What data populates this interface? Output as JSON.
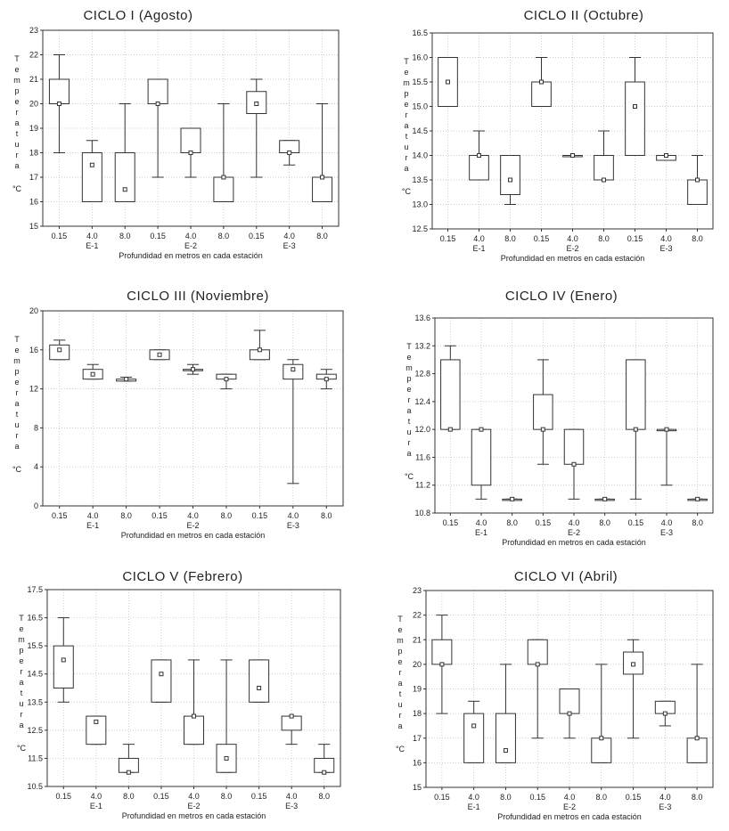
{
  "chart_data": [
    {
      "type": "boxplot",
      "title": "CICLO I (Agosto)",
      "ylabel_letters": [
        "T",
        "e",
        "m",
        "p",
        "e",
        "r",
        "a",
        "t",
        "u",
        "r",
        "a"
      ],
      "ylabel_unit": "°C",
      "xlabel": "Profundidad en metros en cada estación",
      "categories": [
        "0.15",
        "4.0",
        "8.0",
        "0.15",
        "4.0",
        "8.0",
        "0.15",
        "4.0",
        "8.0"
      ],
      "groups": [
        "E-1",
        "E-2",
        "E-3"
      ],
      "ylim": [
        15,
        23
      ],
      "yticks": [
        15,
        16,
        17,
        18,
        19,
        20,
        21,
        22,
        23
      ],
      "ytick_labels": [
        "15",
        "16",
        "17",
        "18",
        "19",
        "20",
        "21",
        "22",
        "23"
      ],
      "boxes": [
        {
          "min": 18,
          "q1": 20,
          "median": 20,
          "q3": 21,
          "max": 22
        },
        {
          "min": 16,
          "q1": 16,
          "median": 17.5,
          "q3": 18,
          "max": 18.5
        },
        {
          "min": 16,
          "q1": 16,
          "median": 16.5,
          "q3": 18,
          "max": 20
        },
        {
          "min": 17,
          "q1": 20,
          "median": 20,
          "q3": 21,
          "max": 21
        },
        {
          "min": 17,
          "q1": 18,
          "median": 18,
          "q3": 19,
          "max": 19
        },
        {
          "min": 16,
          "q1": 16,
          "median": 17,
          "q3": 17,
          "max": 20
        },
        {
          "min": 17,
          "q1": 19.6,
          "median": 20,
          "q3": 20.5,
          "max": 21
        },
        {
          "min": 17.5,
          "q1": 18,
          "median": 18,
          "q3": 18.5,
          "max": 18.5
        },
        {
          "min": 16,
          "q1": 16,
          "median": 17,
          "q3": 17,
          "max": 20
        }
      ]
    },
    {
      "type": "boxplot",
      "title": "CICLO II (Octubre)",
      "ylabel_letters": [
        "T",
        "e",
        "m",
        "p",
        "e",
        "r",
        "a",
        "t",
        "u",
        "r",
        "a"
      ],
      "ylabel_unit": "°C",
      "xlabel": "Profundidad en metros en cada estación",
      "categories": [
        "0.15",
        "4.0",
        "8.0",
        "0.15",
        "4.0",
        "8.0",
        "0.15",
        "4.0",
        "8.0"
      ],
      "groups": [
        "E-1",
        "E-2",
        "E-3"
      ],
      "ylim": [
        12.5,
        16.5
      ],
      "yticks": [
        12.5,
        13,
        13.5,
        14,
        14.5,
        15,
        15.5,
        16,
        16.5
      ],
      "ytick_labels": [
        "12.5",
        "13.0",
        "13.5",
        "14.0",
        "14.5",
        "15.0",
        "15.5",
        "16.0",
        "16.5"
      ],
      "boxes": [
        {
          "min": 15,
          "q1": 15,
          "median": 15.5,
          "q3": 16,
          "max": 16
        },
        {
          "min": 13.5,
          "q1": 13.5,
          "median": 14,
          "q3": 14,
          "max": 14.5
        },
        {
          "min": 13,
          "q1": 13.2,
          "median": 13.5,
          "q3": 14,
          "max": 14
        },
        {
          "min": 15,
          "q1": 15,
          "median": 15.5,
          "q3": 15.5,
          "max": 16
        },
        {
          "min": 14,
          "q1": 14,
          "median": 14,
          "q3": 14,
          "max": 14
        },
        {
          "min": 13.5,
          "q1": 13.5,
          "median": 13.5,
          "q3": 14,
          "max": 14.5
        },
        {
          "min": 14,
          "q1": 14,
          "median": 15,
          "q3": 15.5,
          "max": 16
        },
        {
          "min": 13.9,
          "q1": 13.9,
          "median": 14,
          "q3": 14,
          "max": 14
        },
        {
          "min": 13,
          "q1": 13,
          "median": 13.5,
          "q3": 13.5,
          "max": 14
        }
      ]
    },
    {
      "type": "boxplot",
      "title": "CICLO III (Noviembre)",
      "ylabel_letters": [
        "T",
        "e",
        "m",
        "p",
        "e",
        "r",
        "a",
        "t",
        "u",
        "r",
        "a"
      ],
      "ylabel_unit": "°C",
      "xlabel": "Profundidad en metros en cada estación",
      "categories": [
        "0.15",
        "4.0",
        "8.0",
        "0.15",
        "4.0",
        "8.0",
        "0.15",
        "4.0",
        "8.0"
      ],
      "groups": [
        "E-1",
        "E-2",
        "E-3"
      ],
      "ylim": [
        0,
        20
      ],
      "yticks": [
        0,
        4,
        8,
        12,
        16,
        20
      ],
      "ytick_labels": [
        "0",
        "4",
        "8",
        "12",
        "16",
        "20"
      ],
      "boxes": [
        {
          "min": 15,
          "q1": 15,
          "median": 16,
          "q3": 16.5,
          "max": 17
        },
        {
          "min": 13,
          "q1": 13,
          "median": 13.5,
          "q3": 14,
          "max": 14.5
        },
        {
          "min": 12.8,
          "q1": 12.8,
          "median": 13,
          "q3": 13,
          "max": 13.2
        },
        {
          "min": 15,
          "q1": 15,
          "median": 15.5,
          "q3": 16,
          "max": 16
        },
        {
          "min": 13.5,
          "q1": 14,
          "median": 14,
          "q3": 14,
          "max": 14.5
        },
        {
          "min": 12,
          "q1": 13,
          "median": 13,
          "q3": 13.5,
          "max": 13.5
        },
        {
          "min": 15,
          "q1": 15,
          "median": 16,
          "q3": 16,
          "max": 18
        },
        {
          "min": 2.3,
          "q1": 13,
          "median": 14,
          "q3": 14.5,
          "max": 15
        },
        {
          "min": 12,
          "q1": 13,
          "median": 13,
          "q3": 13.5,
          "max": 14
        }
      ]
    },
    {
      "type": "boxplot",
      "title": "CICLO IV (Enero)",
      "ylabel_letters": [
        "T",
        "e",
        "m",
        "p",
        "e",
        "r",
        "a",
        "t",
        "u",
        "r",
        "a"
      ],
      "ylabel_unit": "°C",
      "xlabel": "Profundidad en metros en cada estación",
      "categories": [
        "0.15",
        "4.0",
        "8.0",
        "0.15",
        "4.0",
        "8.0",
        "0.15",
        "4.0",
        "8.0"
      ],
      "groups": [
        "E-1",
        "E-2",
        "E-3"
      ],
      "ylim": [
        10.8,
        13.6
      ],
      "yticks": [
        10.8,
        11.2,
        11.6,
        12,
        12.4,
        12.8,
        13.2,
        13.6
      ],
      "ytick_labels": [
        "10.8",
        "11.2",
        "11.6",
        "12.0",
        "12.4",
        "12.8",
        "13.2",
        "13.6"
      ],
      "boxes": [
        {
          "min": 12,
          "q1": 12,
          "median": 12,
          "q3": 13,
          "max": 13.2
        },
        {
          "min": 11,
          "q1": 11.2,
          "median": 12,
          "q3": 12,
          "max": 12
        },
        {
          "min": 11,
          "q1": 11,
          "median": 11,
          "q3": 11,
          "max": 11
        },
        {
          "min": 11.5,
          "q1": 12,
          "median": 12,
          "q3": 12.5,
          "max": 13
        },
        {
          "min": 11,
          "q1": 11.5,
          "median": 11.5,
          "q3": 12,
          "max": 12
        },
        {
          "min": 11,
          "q1": 11,
          "median": 11,
          "q3": 11,
          "max": 11
        },
        {
          "min": 11,
          "q1": 12,
          "median": 12,
          "q3": 13,
          "max": 13
        },
        {
          "min": 11.2,
          "q1": 12,
          "median": 12,
          "q3": 12,
          "max": 12
        },
        {
          "min": 11,
          "q1": 11,
          "median": 11,
          "q3": 11,
          "max": 11
        }
      ]
    },
    {
      "type": "boxplot",
      "title": "CICLO V (Febrero)",
      "ylabel_letters": [
        "T",
        "e",
        "m",
        "p",
        "e",
        "r",
        "a",
        "t",
        "u",
        "r",
        "a"
      ],
      "ylabel_unit": "°C",
      "xlabel": "Profundidad en metros en cada estación",
      "categories": [
        "0.15",
        "4.0",
        "8.0",
        "0.15",
        "4.0",
        "8.0",
        "0.15",
        "4.0",
        "8.0"
      ],
      "groups": [
        "E-1",
        "E-2",
        "E-3"
      ],
      "ylim": [
        10.5,
        17.5
      ],
      "yticks": [
        10.5,
        11.5,
        12.5,
        13.5,
        14.5,
        15.5,
        16.5,
        17.5
      ],
      "ytick_labels": [
        "10.5",
        "11.5",
        "12.5",
        "13.5",
        "14.5",
        "15.5",
        "16.5",
        "17.5"
      ],
      "boxes": [
        {
          "min": 13.5,
          "q1": 14,
          "median": 15,
          "q3": 15.5,
          "max": 16.5
        },
        {
          "min": 12,
          "q1": 12,
          "median": 12.8,
          "q3": 13,
          "max": 13
        },
        {
          "min": 11,
          "q1": 11,
          "median": 11,
          "q3": 11.5,
          "max": 12
        },
        {
          "min": 13.5,
          "q1": 13.5,
          "median": 14.5,
          "q3": 15,
          "max": 15
        },
        {
          "min": 12,
          "q1": 12,
          "median": 13,
          "q3": 13,
          "max": 15
        },
        {
          "min": 11,
          "q1": 11,
          "median": 11.5,
          "q3": 12,
          "max": 15
        },
        {
          "min": 13.5,
          "q1": 13.5,
          "median": 14,
          "q3": 15,
          "max": 15
        },
        {
          "min": 12,
          "q1": 12.5,
          "median": 13,
          "q3": 13,
          "max": 13
        },
        {
          "min": 11,
          "q1": 11,
          "median": 11,
          "q3": 11.5,
          "max": 12
        }
      ]
    },
    {
      "type": "boxplot",
      "title": "CICLO VI (Abril)",
      "ylabel_letters": [
        "T",
        "e",
        "m",
        "p",
        "e",
        "r",
        "a",
        "t",
        "u",
        "r",
        "a"
      ],
      "ylabel_unit": "°C",
      "xlabel": "Profundidad en metros en cada estación",
      "categories": [
        "0.15",
        "4.0",
        "8.0",
        "0.15",
        "4.0",
        "8.0",
        "0.15",
        "4.0",
        "8.0"
      ],
      "groups": [
        "E-1",
        "E-2",
        "E-3"
      ],
      "ylim": [
        15,
        23
      ],
      "yticks": [
        15,
        16,
        17,
        18,
        19,
        20,
        21,
        22,
        23
      ],
      "ytick_labels": [
        "15",
        "16",
        "17",
        "18",
        "19",
        "20",
        "21",
        "22",
        "23"
      ],
      "boxes": [
        {
          "min": 18,
          "q1": 20,
          "median": 20,
          "q3": 21,
          "max": 22
        },
        {
          "min": 16,
          "q1": 16,
          "median": 17.5,
          "q3": 18,
          "max": 18.5
        },
        {
          "min": 16,
          "q1": 16,
          "median": 16.5,
          "q3": 18,
          "max": 20
        },
        {
          "min": 17,
          "q1": 20,
          "median": 20,
          "q3": 21,
          "max": 21
        },
        {
          "min": 17,
          "q1": 18,
          "median": 18,
          "q3": 19,
          "max": 19
        },
        {
          "min": 16,
          "q1": 16,
          "median": 17,
          "q3": 17,
          "max": 20
        },
        {
          "min": 17,
          "q1": 19.6,
          "median": 20,
          "q3": 20.5,
          "max": 21
        },
        {
          "min": 17.5,
          "q1": 18,
          "median": 18,
          "q3": 18.5,
          "max": 18.5
        },
        {
          "min": 16,
          "q1": 16,
          "median": 17,
          "q3": 17,
          "max": 20
        }
      ]
    }
  ],
  "colors": {
    "axis": "#333333",
    "grid": "#bbbbbb",
    "box": "#333333",
    "fill": "#ffffff"
  }
}
